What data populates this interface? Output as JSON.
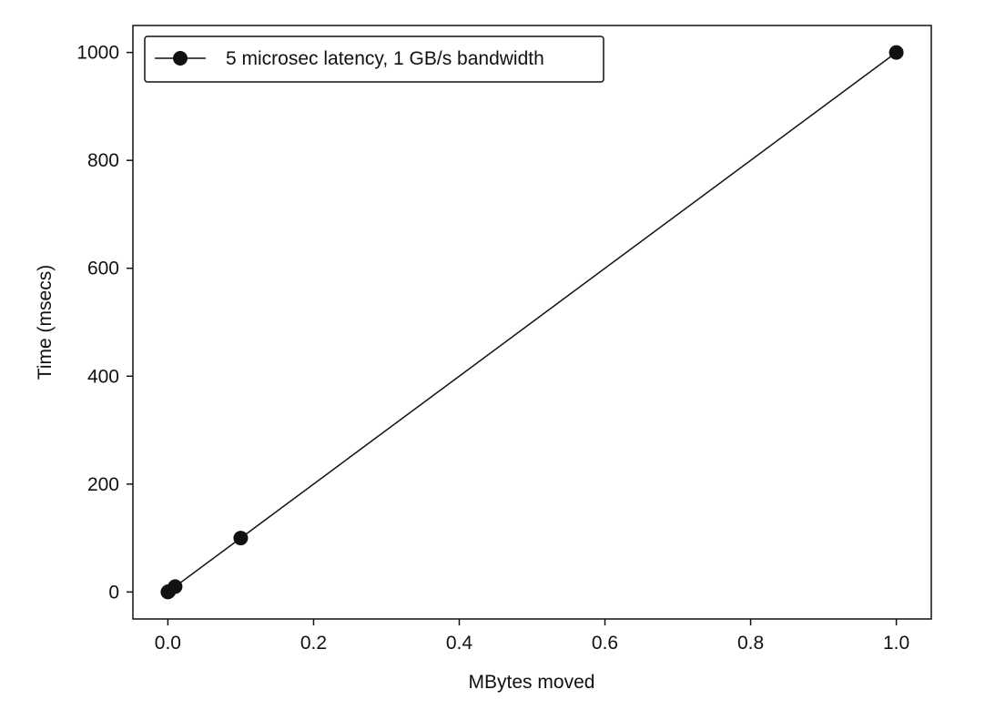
{
  "chart_data": {
    "type": "line",
    "title": "",
    "xlabel": "MBytes moved",
    "ylabel": "Time (msecs)",
    "xlim": [
      -0.048,
      1.048
    ],
    "ylim": [
      -50,
      1050
    ],
    "xticks": [
      0.0,
      0.2,
      0.4,
      0.6,
      0.8,
      1.0
    ],
    "xtick_labels": [
      "0.0",
      "0.2",
      "0.4",
      "0.6",
      "0.8",
      "1.0"
    ],
    "yticks": [
      0,
      200,
      400,
      600,
      800,
      1000
    ],
    "ytick_labels": [
      "0",
      "200",
      "400",
      "600",
      "800",
      "1000"
    ],
    "grid": false,
    "legend_position": "top-left",
    "series": [
      {
        "name": "5 microsec latency, 1 GB/s bandwidth",
        "color": "#111111",
        "marker": "circle",
        "x": [
          0.0,
          0.001,
          0.01,
          0.1,
          1.0
        ],
        "y": [
          0.005,
          1.005,
          10.005,
          100.005,
          1000.005
        ]
      }
    ]
  }
}
